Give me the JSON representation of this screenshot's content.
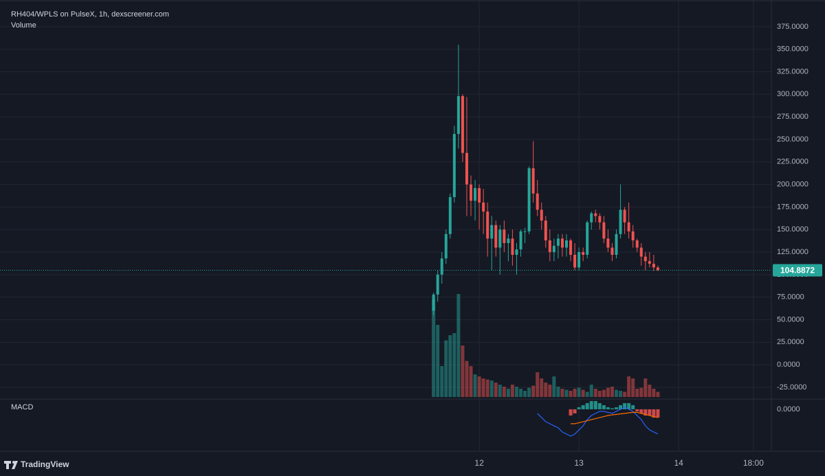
{
  "chart_data": {
    "type": "candlestick",
    "title": "RH404/WPLS on PulseX, 1h, dexscreener.com",
    "volume_label": "Volume",
    "macd_label": "MACD",
    "brand": "TradingView",
    "up_color": "#26a69a",
    "down_color": "#ef5350",
    "grid": true,
    "x": [
      13,
      14,
      15,
      16,
      17,
      18,
      19,
      20,
      21,
      22,
      23,
      24,
      25,
      26,
      27,
      28,
      29,
      30,
      31,
      32,
      33,
      34,
      35,
      36,
      37,
      38,
      39,
      40,
      41,
      42,
      43,
      44,
      45,
      46,
      47,
      48,
      49,
      50,
      51,
      52,
      53,
      54,
      55,
      56,
      57,
      58,
      59,
      60,
      61,
      62,
      63,
      64,
      65,
      66,
      67
    ],
    "open": [
      60,
      78,
      100,
      118,
      145,
      186,
      256,
      298,
      235,
      200,
      182,
      196,
      180,
      170,
      140,
      155,
      130,
      150,
      135,
      140,
      122,
      128,
      148,
      148,
      218,
      190,
      172,
      160,
      138,
      125,
      132,
      140,
      130,
      138,
      122,
      108,
      125,
      122,
      158,
      168,
      165,
      158,
      140,
      130,
      122,
      145,
      172,
      158,
      148,
      138,
      130,
      120,
      115,
      112,
      108
    ],
    "high": [
      80,
      105,
      125,
      150,
      190,
      265,
      355,
      300,
      297,
      210,
      205,
      200,
      195,
      180,
      165,
      160,
      155,
      160,
      145,
      150,
      135,
      150,
      152,
      220,
      248,
      205,
      180,
      165,
      150,
      140,
      145,
      145,
      145,
      140,
      135,
      130,
      130,
      160,
      170,
      172,
      168,
      165,
      150,
      135,
      150,
      200,
      175,
      180,
      155,
      140,
      135,
      125,
      125,
      122,
      110
    ],
    "low": [
      55,
      70,
      90,
      112,
      140,
      180,
      240,
      225,
      165,
      165,
      160,
      150,
      145,
      120,
      105,
      120,
      100,
      125,
      115,
      110,
      100,
      120,
      135,
      145,
      180,
      165,
      150,
      130,
      115,
      115,
      118,
      120,
      120,
      115,
      105,
      105,
      115,
      118,
      150,
      158,
      150,
      135,
      125,
      115,
      118,
      140,
      145,
      140,
      130,
      125,
      110,
      105,
      108,
      104,
      104
    ],
    "close": [
      78,
      100,
      118,
      145,
      186,
      256,
      298,
      235,
      200,
      182,
      196,
      180,
      170,
      140,
      155,
      130,
      150,
      135,
      140,
      122,
      128,
      148,
      148,
      218,
      190,
      172,
      160,
      138,
      125,
      132,
      140,
      130,
      138,
      122,
      108,
      125,
      122,
      158,
      168,
      165,
      158,
      140,
      130,
      122,
      145,
      172,
      158,
      148,
      138,
      130,
      120,
      115,
      112,
      108,
      104.8872
    ],
    "volume": [
      95,
      70,
      30,
      55,
      60,
      62,
      100,
      50,
      35,
      30,
      22,
      20,
      18,
      17,
      16,
      14,
      12,
      10,
      8,
      12,
      10,
      8,
      6,
      9,
      11,
      24,
      18,
      14,
      12,
      20,
      10,
      8,
      7,
      6,
      8,
      9,
      7,
      5,
      12,
      8,
      6,
      7,
      9,
      10,
      7,
      6,
      5,
      20,
      18,
      8,
      9,
      18,
      12,
      8,
      5
    ],
    "volume_ylim": [
      0,
      100
    ],
    "ylim": [
      -35.7,
      398.5
    ],
    "yticks": [
      {
        "value": -25,
        "label": "-25.0000"
      },
      {
        "value": 0,
        "label": "0.0000"
      },
      {
        "value": 25,
        "label": "25.0000"
      },
      {
        "value": 50,
        "label": "50.0000"
      },
      {
        "value": 75,
        "label": "75.0000"
      },
      {
        "value": 100,
        "label": "100.0000"
      },
      {
        "value": 125,
        "label": "125.0000"
      },
      {
        "value": 150,
        "label": "150.0000"
      },
      {
        "value": 175,
        "label": "175.0000"
      },
      {
        "value": 200,
        "label": "200.0000"
      },
      {
        "value": 225,
        "label": "225.0000"
      },
      {
        "value": 250,
        "label": "250.0000"
      },
      {
        "value": 275,
        "label": "275.0000"
      },
      {
        "value": 300,
        "label": "300.0000"
      },
      {
        "value": 325,
        "label": "325.0000"
      },
      {
        "value": 350,
        "label": "350.0000"
      },
      {
        "value": 375,
        "label": "375.0000"
      }
    ],
    "xlim": [
      -90.04,
      94.32
    ],
    "xticks": [
      {
        "value": 24,
        "label": "12"
      },
      {
        "value": 48,
        "label": "13"
      },
      {
        "value": 72,
        "label": "14"
      },
      {
        "value": 90,
        "label": "18:00"
      }
    ],
    "macd": {
      "ylim": [
        -19.7,
        4.3
      ],
      "yticks": [
        {
          "value": 0,
          "label": "0.0000"
        }
      ],
      "histogram": [
        null,
        null,
        null,
        null,
        null,
        null,
        null,
        null,
        null,
        null,
        null,
        null,
        null,
        null,
        null,
        null,
        null,
        null,
        null,
        null,
        null,
        null,
        null,
        null,
        null,
        null,
        null,
        null,
        null,
        null,
        null,
        null,
        null,
        -3,
        -2,
        1,
        2,
        3,
        4,
        4,
        3,
        2,
        1,
        0.5,
        1,
        2,
        3,
        3,
        2,
        -1,
        -2,
        -3,
        -3,
        -4,
        -4
      ],
      "macd_line": {
        "color": "#2962ff",
        "values": [
          null,
          null,
          null,
          null,
          null,
          null,
          null,
          null,
          null,
          null,
          null,
          null,
          null,
          null,
          null,
          null,
          null,
          null,
          null,
          null,
          null,
          null,
          null,
          null,
          null,
          -2,
          -4,
          -6,
          -7,
          -8,
          -9,
          -11,
          -12,
          -13,
          -12,
          -10,
          -8,
          -5,
          -3,
          -2,
          -1,
          -1,
          -1.5,
          -2,
          -1,
          0,
          1,
          0,
          -1,
          -3,
          -5,
          -8,
          -10,
          -11,
          -12
        ]
      },
      "signal_line": {
        "color": "#ff6d00",
        "values": [
          null,
          null,
          null,
          null,
          null,
          null,
          null,
          null,
          null,
          null,
          null,
          null,
          null,
          null,
          null,
          null,
          null,
          null,
          null,
          null,
          null,
          null,
          null,
          null,
          null,
          null,
          null,
          null,
          null,
          null,
          null,
          null,
          null,
          -7,
          -7,
          -6.5,
          -6,
          -5.5,
          -5,
          -4.5,
          -4,
          -3.5,
          -3,
          -2.7,
          -2.5,
          -2.2,
          -2,
          -1.7,
          -1.5,
          -1.5,
          -2,
          -2.5,
          -3,
          -3.5,
          -4
        ]
      }
    }
  }
}
